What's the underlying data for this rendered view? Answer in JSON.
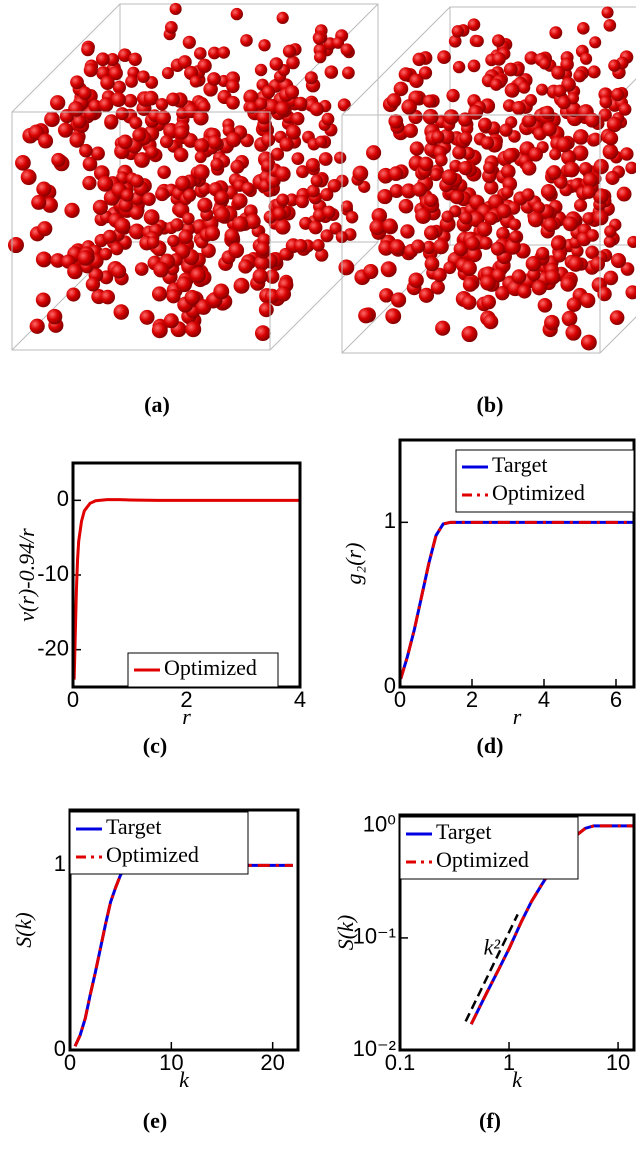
{
  "panels": [
    {
      "caption": "(a)"
    },
    {
      "caption": "(b)"
    }
  ],
  "chart_data": [
    {
      "type": "line",
      "caption": "(c)",
      "xlabel": "r",
      "ylabel": "v(r)-0.94/r",
      "x": [
        0.02,
        0.04,
        0.06,
        0.08,
        0.1,
        0.15,
        0.2,
        0.3,
        0.4,
        0.6,
        0.8,
        1,
        1.5,
        2,
        3,
        4
      ],
      "series": [
        {
          "name": "Optimized",
          "color": "#e00000",
          "style": "solid",
          "values": [
            -24,
            -18,
            -12,
            -8,
            -5.5,
            -2.8,
            -1.4,
            -0.4,
            -0.05,
            0.1,
            0.1,
            0.05,
            0,
            0,
            0,
            0
          ]
        }
      ],
      "xlim": [
        0,
        4
      ],
      "ylim": [
        -25,
        5
      ],
      "xticks": [
        0,
        2,
        4
      ],
      "yticks": [
        -20,
        -10,
        0
      ],
      "legend": "center right"
    },
    {
      "type": "line",
      "caption": "(d)",
      "xlabel": "r",
      "ylabel": "g₂(r)",
      "x": [
        0.02,
        0.2,
        0.4,
        0.6,
        0.8,
        1.0,
        1.2,
        1.4,
        2,
        3,
        4,
        5,
        6,
        6.5
      ],
      "series": [
        {
          "name": "Target",
          "color": "#0000e0",
          "style": "solid",
          "values": [
            0.05,
            0.18,
            0.35,
            0.55,
            0.75,
            0.92,
            0.99,
            1,
            1,
            1,
            1,
            1,
            1,
            1
          ]
        },
        {
          "name": "Optimized",
          "color": "#e00000",
          "style": "dashed",
          "values": [
            0.05,
            0.18,
            0.35,
            0.55,
            0.75,
            0.92,
            0.99,
            1,
            1,
            1,
            1,
            1,
            1,
            1
          ]
        }
      ],
      "xlim": [
        0,
        6.5
      ],
      "ylim": [
        0,
        1.5
      ],
      "xticks": [
        0,
        2,
        4,
        6
      ],
      "yticks": [
        0,
        1
      ],
      "legend": "upper right"
    },
    {
      "type": "line",
      "caption": "(e)",
      "xlabel": "k",
      "ylabel": "S(k)",
      "x": [
        0.5,
        1,
        1.5,
        2,
        2.5,
        3,
        3.5,
        4,
        4.5,
        5,
        5.5,
        6,
        6.5,
        7,
        7.5,
        8,
        10,
        12,
        15,
        18,
        22
      ],
      "series": [
        {
          "name": "Target",
          "color": "#0000e0",
          "style": "solid",
          "values": [
            0.02,
            0.08,
            0.17,
            0.3,
            0.42,
            0.55,
            0.68,
            0.8,
            0.88,
            0.95,
            0.98,
            1.0,
            0.98,
            1.01,
            0.99,
            1.0,
            1.0,
            1.0,
            1.0,
            1.0,
            1.0
          ]
        },
        {
          "name": "Optimized",
          "color": "#e00000",
          "style": "dashed",
          "values": [
            0.02,
            0.08,
            0.17,
            0.3,
            0.42,
            0.55,
            0.68,
            0.8,
            0.88,
            0.95,
            0.98,
            1.0,
            0.98,
            1.01,
            0.99,
            1.0,
            1.0,
            1.0,
            1.0,
            1.0,
            1.0
          ]
        }
      ],
      "xlim": [
        0,
        22.5
      ],
      "ylim": [
        0,
        1.3
      ],
      "xticks": [
        0,
        10,
        20
      ],
      "yticks": [
        0,
        1
      ],
      "legend": "upper left"
    },
    {
      "type": "line",
      "caption": "(f)",
      "xlabel": "k",
      "ylabel": "S(k)",
      "xscale": "log",
      "yscale": "log",
      "x": [
        0.45,
        0.6,
        0.8,
        1,
        1.3,
        1.6,
        2,
        2.5,
        3,
        3.5,
        4,
        5,
        6,
        7,
        8,
        10,
        14
      ],
      "series": [
        {
          "name": "Target",
          "color": "#0000e0",
          "style": "solid",
          "values": [
            0.017,
            0.03,
            0.052,
            0.08,
            0.14,
            0.21,
            0.3,
            0.42,
            0.55,
            0.68,
            0.8,
            0.95,
            1.0,
            1.0,
            1.0,
            1.0,
            1.0
          ]
        },
        {
          "name": "Optimized",
          "color": "#e00000",
          "style": "dashed",
          "values": [
            0.017,
            0.03,
            0.052,
            0.08,
            0.14,
            0.21,
            0.3,
            0.42,
            0.55,
            0.68,
            0.8,
            0.95,
            1.0,
            1.0,
            1.0,
            1.0,
            1.0
          ]
        }
      ],
      "reference_line": {
        "label": "k²",
        "color": "#000000",
        "x": [
          0.4,
          1.2
        ],
        "values": [
          0.018,
          0.162
        ]
      },
      "xlim": [
        0.1,
        14
      ],
      "ylim": [
        0.01,
        1.25
      ],
      "xticks": [
        0.1,
        1,
        10
      ],
      "yticks": [
        {
          "value": 0.01,
          "label": "10⁻²"
        },
        {
          "value": 0.1,
          "label": "10⁻¹"
        },
        {
          "value": 1,
          "label": "10⁰"
        }
      ],
      "legend": "upper left"
    }
  ]
}
